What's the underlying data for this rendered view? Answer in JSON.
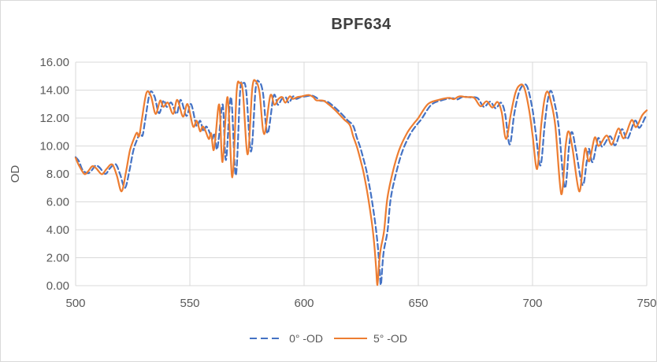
{
  "chart_data": {
    "type": "line",
    "title": "BPF634",
    "xlabel": "",
    "ylabel": "OD",
    "xlim": [
      500,
      750
    ],
    "ylim": [
      0,
      16
    ],
    "x_ticks": [
      500,
      550,
      600,
      650,
      700,
      750
    ],
    "x_tick_labels": [
      "500",
      "550",
      "600",
      "650",
      "700",
      "750"
    ],
    "y_ticks": [
      0,
      2,
      4,
      6,
      8,
      10,
      12,
      14,
      16
    ],
    "y_tick_labels": [
      "0.00",
      "2.00",
      "4.00",
      "6.00",
      "8.00",
      "10.00",
      "12.00",
      "14.00",
      "16.00"
    ],
    "grid": true,
    "legend_position": "bottom",
    "colors": {
      "grid": "#d9d9d9",
      "axis_text": "#595959",
      "title_text": "#3f3f3f",
      "blue": "#4472C4",
      "orange": "#ED7D31"
    },
    "series": [
      {
        "name": "0°  -OD",
        "color": "#4472C4",
        "style": "dashed",
        "points": [
          [
            500,
            9.2
          ],
          [
            501.5,
            8.9
          ],
          [
            503,
            8.3
          ],
          [
            505.3,
            8.05
          ],
          [
            507,
            8.25
          ],
          [
            508.8,
            8.6
          ],
          [
            510.5,
            8.45
          ],
          [
            513,
            8.0
          ],
          [
            515,
            8.4
          ],
          [
            517.5,
            8.7
          ],
          [
            519.5,
            7.95
          ],
          [
            521.6,
            7.0
          ],
          [
            523.5,
            8.2
          ],
          [
            525.3,
            9.7
          ],
          [
            527,
            10.5
          ],
          [
            528.3,
            10.95
          ],
          [
            529.3,
            10.75
          ],
          [
            530.5,
            11.9
          ],
          [
            532.5,
            13.8
          ],
          [
            534.5,
            13.55
          ],
          [
            536.5,
            12.35
          ],
          [
            538.5,
            13.25
          ],
          [
            539.9,
            12.8
          ],
          [
            541.9,
            13.1
          ],
          [
            544.2,
            12.3
          ],
          [
            546,
            13.3
          ],
          [
            548.5,
            12.15
          ],
          [
            550.5,
            13.0
          ],
          [
            552.9,
            11.45
          ],
          [
            554.5,
            11.8
          ],
          [
            556,
            11.05
          ],
          [
            557.1,
            11.4
          ],
          [
            558.3,
            11.1
          ],
          [
            559.8,
            10.5
          ],
          [
            560.8,
            10.9
          ],
          [
            561.8,
            9.75
          ],
          [
            562.7,
            10.6
          ],
          [
            564.4,
            12.95
          ],
          [
            565.8,
            9.0
          ],
          [
            568,
            13.5
          ],
          [
            570.1,
            7.9
          ],
          [
            572,
            13.9
          ],
          [
            573.3,
            14.5
          ],
          [
            574.7,
            13.9
          ],
          [
            576.8,
            9.6
          ],
          [
            578.8,
            14.1
          ],
          [
            580.3,
            14.6
          ],
          [
            582,
            13.8
          ],
          [
            584,
            10.9
          ],
          [
            586.7,
            13.6
          ],
          [
            588.5,
            12.95
          ],
          [
            590.2,
            13.35
          ],
          [
            591.9,
            13.5
          ],
          [
            593.3,
            13.1
          ],
          [
            595.2,
            13.55
          ],
          [
            596.6,
            13.37
          ],
          [
            598.5,
            13.5
          ],
          [
            600.5,
            13.55
          ],
          [
            603.5,
            13.6
          ],
          [
            605.5,
            13.45
          ],
          [
            606.9,
            13.25
          ],
          [
            609.8,
            13.2
          ],
          [
            612.1,
            12.95
          ],
          [
            615.5,
            12.45
          ],
          [
            619,
            11.85
          ],
          [
            621.5,
            11.45
          ],
          [
            623,
            10.65
          ],
          [
            624.7,
            9.85
          ],
          [
            626.5,
            8.75
          ],
          [
            627.6,
            8.0
          ],
          [
            629.3,
            6.5
          ],
          [
            631,
            4.65
          ],
          [
            632.2,
            2.95
          ],
          [
            633,
            1.3
          ],
          [
            633.6,
            0.05
          ],
          [
            634.3,
            1.5
          ],
          [
            635,
            2.6
          ],
          [
            636.5,
            3.9
          ],
          [
            637.9,
            6.2
          ],
          [
            640.2,
            8.0
          ],
          [
            643.1,
            9.65
          ],
          [
            646.5,
            10.85
          ],
          [
            649.5,
            11.55
          ],
          [
            651.5,
            11.95
          ],
          [
            655.7,
            12.95
          ],
          [
            660.4,
            13.28
          ],
          [
            664.9,
            13.42
          ],
          [
            667,
            13.33
          ],
          [
            669.5,
            13.52
          ],
          [
            672.5,
            13.48
          ],
          [
            675.9,
            13.43
          ],
          [
            678.7,
            12.8
          ],
          [
            681.4,
            13.17
          ],
          [
            683.9,
            12.7
          ],
          [
            686.2,
            13.1
          ],
          [
            688,
            12.3
          ],
          [
            690,
            10.1
          ],
          [
            692,
            12.3
          ],
          [
            694,
            13.8
          ],
          [
            695.9,
            14.35
          ],
          [
            697.8,
            14.2
          ],
          [
            700,
            12.6
          ],
          [
            701.5,
            10.8
          ],
          [
            703.5,
            8.6
          ],
          [
            705.3,
            11.5
          ],
          [
            706.7,
            13.3
          ],
          [
            708,
            13.95
          ],
          [
            709.5,
            13.2
          ],
          [
            711.5,
            11.3
          ],
          [
            714.1,
            7.0
          ],
          [
            716,
            10.0
          ],
          [
            717.3,
            11.0
          ],
          [
            719,
            9.7
          ],
          [
            721.9,
            7.2
          ],
          [
            723.7,
            8.85
          ],
          [
            724.7,
            9.8
          ],
          [
            726.3,
            8.85
          ],
          [
            728.7,
            10.55
          ],
          [
            730.5,
            9.95
          ],
          [
            733.9,
            10.7
          ],
          [
            736.2,
            10.05
          ],
          [
            739.1,
            11.2
          ],
          [
            741.5,
            10.5
          ],
          [
            744.8,
            11.8
          ],
          [
            746.8,
            11.3
          ],
          [
            749.5,
            12.1
          ],
          [
            750,
            12.2
          ]
        ]
      },
      {
        "name": "5°  -OD",
        "color": "#ED7D31",
        "style": "solid",
        "points": [
          [
            500,
            9.15
          ],
          [
            501.5,
            8.6
          ],
          [
            503.8,
            8.0
          ],
          [
            505.5,
            8.2
          ],
          [
            507.3,
            8.55
          ],
          [
            509,
            8.4
          ],
          [
            511.5,
            7.98
          ],
          [
            513.5,
            8.35
          ],
          [
            516,
            8.68
          ],
          [
            518,
            7.9
          ],
          [
            520.1,
            6.75
          ],
          [
            522,
            8.1
          ],
          [
            523.8,
            9.7
          ],
          [
            525.5,
            10.5
          ],
          [
            526.8,
            10.95
          ],
          [
            527.8,
            10.7
          ],
          [
            529,
            11.9
          ],
          [
            531,
            13.8
          ],
          [
            533,
            13.55
          ],
          [
            535,
            12.3
          ],
          [
            537,
            13.25
          ],
          [
            538.4,
            12.8
          ],
          [
            540.4,
            13.1
          ],
          [
            542.7,
            12.3
          ],
          [
            544.5,
            13.3
          ],
          [
            547,
            12.1
          ],
          [
            549,
            13.0
          ],
          [
            551.4,
            11.4
          ],
          [
            553,
            11.8
          ],
          [
            554.5,
            11.05
          ],
          [
            555.6,
            11.4
          ],
          [
            556.8,
            11.1
          ],
          [
            558.3,
            10.5
          ],
          [
            559.3,
            10.9
          ],
          [
            560.3,
            9.7
          ],
          [
            561.2,
            10.6
          ],
          [
            562.9,
            12.95
          ],
          [
            564.3,
            8.85
          ],
          [
            566.5,
            13.5
          ],
          [
            568.6,
            7.75
          ],
          [
            570.5,
            13.9
          ],
          [
            571.8,
            14.5
          ],
          [
            573.2,
            13.9
          ],
          [
            575.3,
            9.4
          ],
          [
            577.3,
            14.1
          ],
          [
            578.8,
            14.65
          ],
          [
            580.5,
            13.8
          ],
          [
            582.5,
            10.85
          ],
          [
            585.2,
            13.6
          ],
          [
            587,
            12.95
          ],
          [
            588.7,
            13.35
          ],
          [
            590.4,
            13.5
          ],
          [
            591.8,
            13.1
          ],
          [
            593.7,
            13.55
          ],
          [
            595.1,
            13.37
          ],
          [
            597,
            13.5
          ],
          [
            599,
            13.55
          ],
          [
            602,
            13.65
          ],
          [
            604,
            13.5
          ],
          [
            605.4,
            13.27
          ],
          [
            608.3,
            13.25
          ],
          [
            610.6,
            13.0
          ],
          [
            614,
            12.5
          ],
          [
            617.5,
            11.9
          ],
          [
            620,
            11.5
          ],
          [
            621.5,
            10.7
          ],
          [
            623.2,
            9.9
          ],
          [
            625,
            8.8
          ],
          [
            626.1,
            8.05
          ],
          [
            627.8,
            6.55
          ],
          [
            629.5,
            4.7
          ],
          [
            630.7,
            3.0
          ],
          [
            631.5,
            1.3
          ],
          [
            632.1,
            0.05
          ],
          [
            632.8,
            1.5
          ],
          [
            633.5,
            2.6
          ],
          [
            635,
            3.9
          ],
          [
            636.4,
            6.2
          ],
          [
            638.7,
            8.05
          ],
          [
            641.6,
            9.7
          ],
          [
            645,
            10.9
          ],
          [
            648,
            11.6
          ],
          [
            650,
            12.0
          ],
          [
            654.2,
            13.0
          ],
          [
            658.9,
            13.3
          ],
          [
            663.4,
            13.45
          ],
          [
            665.5,
            13.35
          ],
          [
            668,
            13.55
          ],
          [
            671,
            13.5
          ],
          [
            674.4,
            13.45
          ],
          [
            677.2,
            12.85
          ],
          [
            679.9,
            13.2
          ],
          [
            682.4,
            12.75
          ],
          [
            684.7,
            13.15
          ],
          [
            686.5,
            12.4
          ],
          [
            688.4,
            10.5
          ],
          [
            690.5,
            12.3
          ],
          [
            692.5,
            13.8
          ],
          [
            694.4,
            14.35
          ],
          [
            696.3,
            14.2
          ],
          [
            698.5,
            12.6
          ],
          [
            700,
            10.8
          ],
          [
            702,
            8.35
          ],
          [
            703.8,
            11.5
          ],
          [
            705.2,
            13.3
          ],
          [
            706.5,
            13.9
          ],
          [
            708,
            13.2
          ],
          [
            710,
            11.4
          ],
          [
            712.6,
            6.55
          ],
          [
            714.5,
            10.0
          ],
          [
            715.8,
            11.05
          ],
          [
            717.5,
            9.8
          ],
          [
            720.4,
            6.75
          ],
          [
            722.2,
            8.9
          ],
          [
            723.2,
            9.85
          ],
          [
            724.8,
            8.9
          ],
          [
            727.2,
            10.6
          ],
          [
            729,
            10.0
          ],
          [
            732.4,
            10.75
          ],
          [
            734.7,
            10.1
          ],
          [
            737.6,
            11.25
          ],
          [
            740,
            10.55
          ],
          [
            743.3,
            11.85
          ],
          [
            745.3,
            11.35
          ],
          [
            748,
            12.2
          ],
          [
            750,
            12.55
          ]
        ]
      }
    ]
  }
}
